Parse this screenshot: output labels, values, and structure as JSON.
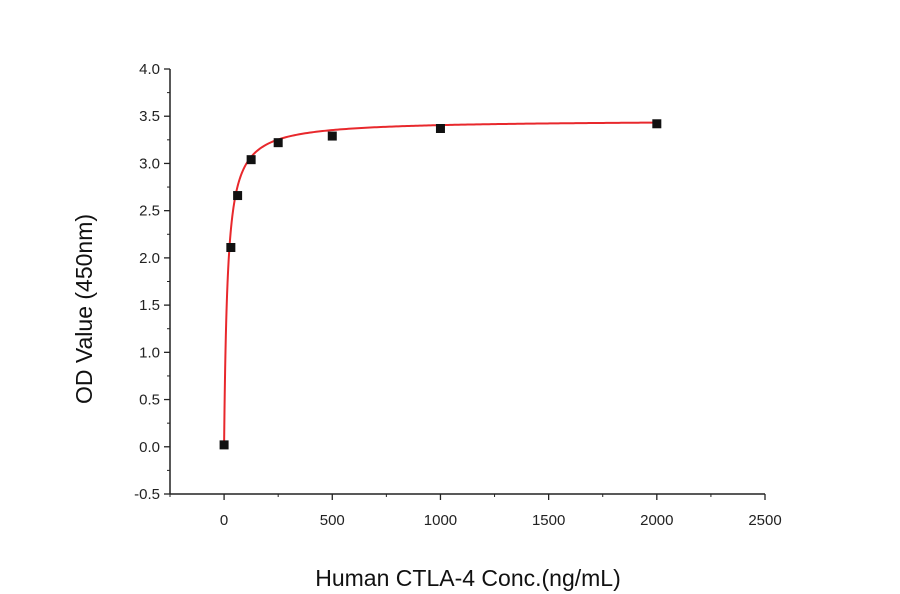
{
  "chart_data": {
    "type": "scatter",
    "xlabel": "Human CTLA-4 Conc.(ng/mL)",
    "ylabel": "OD Value (450nm)",
    "xlim": [
      -250,
      2500
    ],
    "ylim": [
      -0.5,
      4.0
    ],
    "xticks": [
      0,
      500,
      1000,
      1500,
      2000,
      2500
    ],
    "yticks": [
      -0.5,
      0.0,
      0.5,
      1.0,
      1.5,
      2.0,
      2.5,
      3.0,
      3.5,
      4.0
    ],
    "xtick_labels": [
      "0",
      "500",
      "1000",
      "1500",
      "2000",
      "2500"
    ],
    "ytick_labels": [
      "-0.5",
      "0.0",
      "0.5",
      "1.0",
      "1.5",
      "2.0",
      "2.5",
      "3.0",
      "3.5",
      "4.0"
    ],
    "grid": false,
    "series": [
      {
        "kind": "points",
        "x": [
          0,
          31.25,
          62.5,
          125,
          250,
          500,
          1000,
          2000
        ],
        "y": [
          0.02,
          2.11,
          2.66,
          3.04,
          3.22,
          3.29,
          3.37,
          3.42
        ],
        "color": "#111111",
        "marker": "square"
      },
      {
        "kind": "fit",
        "model": "hyperbolic",
        "params": {
          "bmax": 3.44,
          "kd": 16.0,
          "y0": 0.02
        },
        "x_range": [
          0,
          2000
        ],
        "color": "#e8282c"
      }
    ]
  }
}
